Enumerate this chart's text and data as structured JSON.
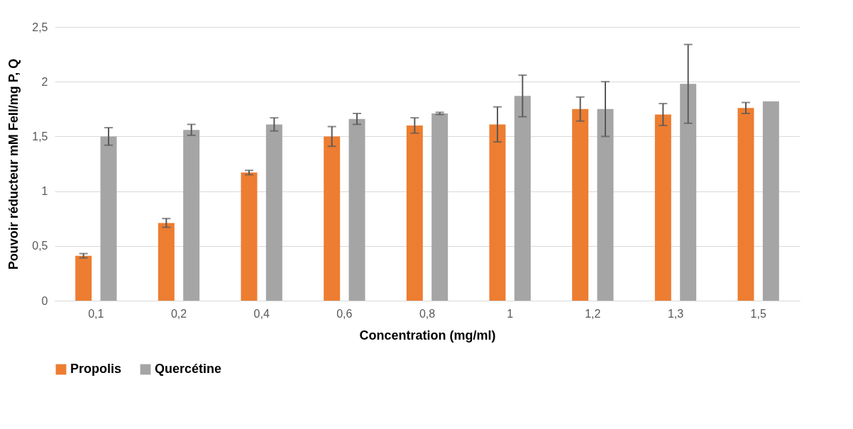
{
  "chart_data": {
    "type": "bar",
    "xlabel": "Concentration (mg/ml)",
    "ylabel": "Pouvoir réducteur mM FeII/mg P, Q",
    "categories": [
      "0,1",
      "0,2",
      "0,4",
      "0,6",
      "0,8",
      "1",
      "1,2",
      "1,3",
      "1,5"
    ],
    "series": [
      {
        "name": "Propolis",
        "color": "#ed7d31",
        "values": [
          0.41,
          0.71,
          1.17,
          1.5,
          1.6,
          1.61,
          1.75,
          1.7,
          1.76
        ],
        "errors": [
          0.02,
          0.04,
          0.02,
          0.09,
          0.07,
          0.16,
          0.11,
          0.1,
          0.05
        ]
      },
      {
        "name": "Quercétine",
        "color": "#a5a5a5",
        "values": [
          1.5,
          1.56,
          1.61,
          1.66,
          1.71,
          1.87,
          1.75,
          1.98,
          1.82
        ],
        "errors": [
          0.08,
          0.05,
          0.06,
          0.05,
          0.01,
          0.19,
          0.25,
          0.36,
          null
        ]
      }
    ],
    "ylim": [
      0,
      2.5
    ],
    "yticks": [
      0,
      {
        "value": 0.5,
        "label": "0,5"
      },
      1,
      {
        "value": 1.5,
        "label": "1,5"
      },
      2,
      {
        "value": 2.5,
        "label": "2,5"
      }
    ],
    "grid": "y",
    "legend": "bottom"
  }
}
